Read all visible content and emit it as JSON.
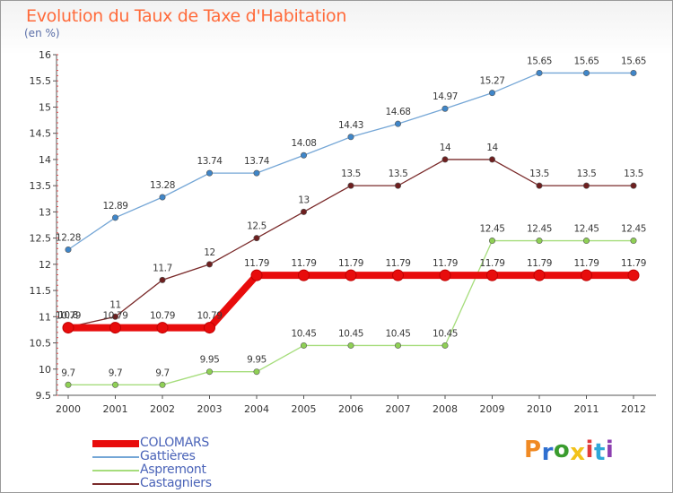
{
  "title": "Evolution du Taux de Taxe d'Habitation",
  "unit_label": "(en %)",
  "logo": {
    "text": "Proxiti",
    "colors": [
      "#f08a24",
      "#2f6fd0",
      "#3a9c2e",
      "#f2c21a",
      "#e03a3a",
      "#2fa8d8",
      "#8c3fb0"
    ]
  },
  "chart_data": {
    "type": "line",
    "x": [
      2000,
      2001,
      2002,
      2003,
      2004,
      2005,
      2006,
      2007,
      2008,
      2009,
      2010,
      2011,
      2012
    ],
    "ylim": [
      9.5,
      16
    ],
    "yticks": [
      9.5,
      10,
      10.5,
      11,
      11.5,
      12,
      12.5,
      13,
      13.5,
      14,
      14.5,
      15,
      15.5,
      16
    ],
    "ytick_labels": [
      "9.5",
      "10",
      "10.5",
      "11",
      "11.5",
      "12",
      "12.5",
      "13",
      "13.5",
      "14",
      "14.5",
      "15",
      "15.5",
      "16"
    ],
    "xtick_labels": [
      "2000",
      "2001",
      "2002",
      "2003",
      "2004",
      "2005",
      "2006",
      "2007",
      "2008",
      "2009",
      "2010",
      "2011",
      "2012"
    ],
    "grid": false,
    "legend_position": "bottom-left",
    "series": [
      {
        "name": "COLOMARS",
        "color": "#e80c0c",
        "emphasis": true,
        "values": [
          10.79,
          10.79,
          10.79,
          10.79,
          11.79,
          11.79,
          11.79,
          11.79,
          11.79,
          11.79,
          11.79,
          11.79,
          11.79
        ],
        "labels": [
          "10.79",
          "10.79",
          "10.79",
          "10.79",
          "11.79",
          "11.79",
          "11.79",
          "11.79",
          "11.79",
          "11.79",
          "11.79",
          "11.79",
          "11.79"
        ]
      },
      {
        "name": "Gattières",
        "color": "#74a6d6",
        "marker": "#3f86c9",
        "values": [
          12.28,
          12.89,
          13.28,
          13.74,
          13.74,
          14.08,
          14.43,
          14.68,
          14.97,
          15.27,
          15.65,
          15.65,
          15.65
        ],
        "labels": [
          "12.28",
          "12.89",
          "13.28",
          "13.74",
          "13.74",
          "14.08",
          "14.43",
          "14.68",
          "14.97",
          "15.27",
          "15.65",
          "15.65",
          "15.65"
        ]
      },
      {
        "name": "Aspremont",
        "color": "#a6dd7c",
        "marker": "#8fd055",
        "values": [
          9.7,
          9.7,
          9.7,
          9.95,
          9.95,
          10.45,
          10.45,
          10.45,
          10.45,
          12.45,
          12.45,
          12.45,
          12.45
        ],
        "labels": [
          "9.7",
          "9.7",
          "9.7",
          "9.95",
          "9.95",
          "10.45",
          "10.45",
          "10.45",
          "10.45",
          "12.45",
          "12.45",
          "12.45",
          "12.45"
        ]
      },
      {
        "name": "Castagniers",
        "color": "#7a2a2a",
        "marker": "#6e1f1f",
        "values": [
          10.8,
          11,
          11.7,
          12,
          12.5,
          13,
          13.5,
          13.5,
          14,
          14,
          13.5,
          13.5,
          13.5
        ],
        "labels": [
          "10.8",
          "11",
          "11.7",
          "12",
          "12.5",
          "13",
          "13.5",
          "13.5",
          "14",
          "14",
          "13.5",
          "13.5",
          "13.5"
        ]
      }
    ]
  }
}
